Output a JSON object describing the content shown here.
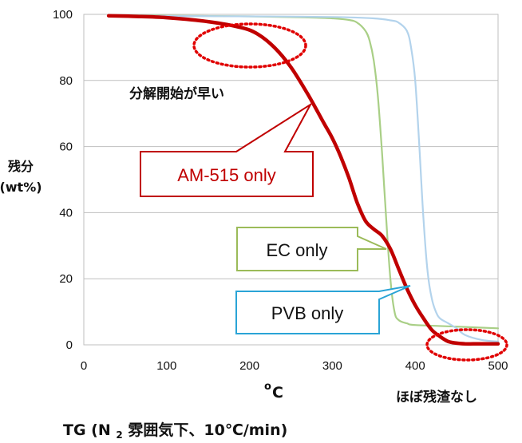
{
  "chart_data": {
    "type": "line",
    "xlabel_prefix": "o",
    "xlabel_main": "C",
    "ylabel_line1": "残分",
    "ylabel_line2": "(wt%)",
    "caption_prefix": "TG (N",
    "caption_sub": "2",
    "caption_suffix": "雰囲気下、10℃/min)",
    "xlim": [
      0,
      500
    ],
    "ylim": [
      0,
      100
    ],
    "x_ticks": [
      "0",
      "100",
      "200",
      "300",
      "400",
      "500"
    ],
    "y_ticks": [
      "0",
      "20",
      "40",
      "60",
      "80",
      "100"
    ],
    "grid": true,
    "series": [
      {
        "name": "EC only",
        "color": "#a9cf86",
        "x": [
          30,
          100,
          200,
          280,
          300,
          320,
          330,
          340,
          345,
          350,
          355,
          360,
          365,
          370,
          375,
          380,
          390,
          400,
          450,
          500
        ],
        "y": [
          99.7,
          99.6,
          99.4,
          99.0,
          98.8,
          98.3,
          97.5,
          95,
          92,
          86,
          75,
          58,
          38,
          20,
          10,
          7.5,
          6.5,
          6,
          5.5,
          5
        ]
      },
      {
        "name": "PVB only",
        "color": "#b3d3ec",
        "x": [
          30,
          100,
          200,
          300,
          350,
          370,
          380,
          390,
          395,
          400,
          405,
          410,
          415,
          420,
          425,
          430,
          440,
          450,
          460,
          480,
          500
        ],
        "y": [
          99.6,
          99.5,
          99.4,
          99.2,
          98.8,
          98.2,
          97.5,
          95,
          90,
          80,
          60,
          38,
          22,
          14,
          10,
          8,
          6.5,
          5,
          3,
          1.5,
          1
        ]
      },
      {
        "name": "AM-515 only",
        "color": "#c00000",
        "x": [
          30,
          60,
          100,
          150,
          190,
          210,
          230,
          250,
          270,
          290,
          300,
          310,
          320,
          330,
          340,
          350,
          360,
          370,
          380,
          390,
          400,
          410,
          420,
          430,
          440,
          450,
          460,
          470,
          480,
          500
        ],
        "y": [
          99.6,
          99.4,
          99.0,
          97.8,
          96.0,
          94.0,
          90.0,
          84.0,
          76.0,
          67.0,
          62.5,
          57.0,
          50.5,
          43.0,
          37.5,
          35.0,
          33.0,
          29.0,
          23.0,
          17.0,
          12.0,
          8.0,
          4.5,
          2.5,
          1.0,
          0.5,
          0.3,
          0.3,
          0.3,
          0.3
        ]
      }
    ],
    "callouts": [
      {
        "label": "AM-515 only",
        "color": "#c00000",
        "text_color": "#c00000"
      },
      {
        "label": "EC only",
        "color": "#9bbb59",
        "text_color": "#111111"
      },
      {
        "label": "PVB only",
        "color": "#2aa4d6",
        "text_color": "#111111"
      }
    ],
    "annotation_early": "分解開始が早い",
    "annotation_residue": "ほぼ残渣なし"
  }
}
